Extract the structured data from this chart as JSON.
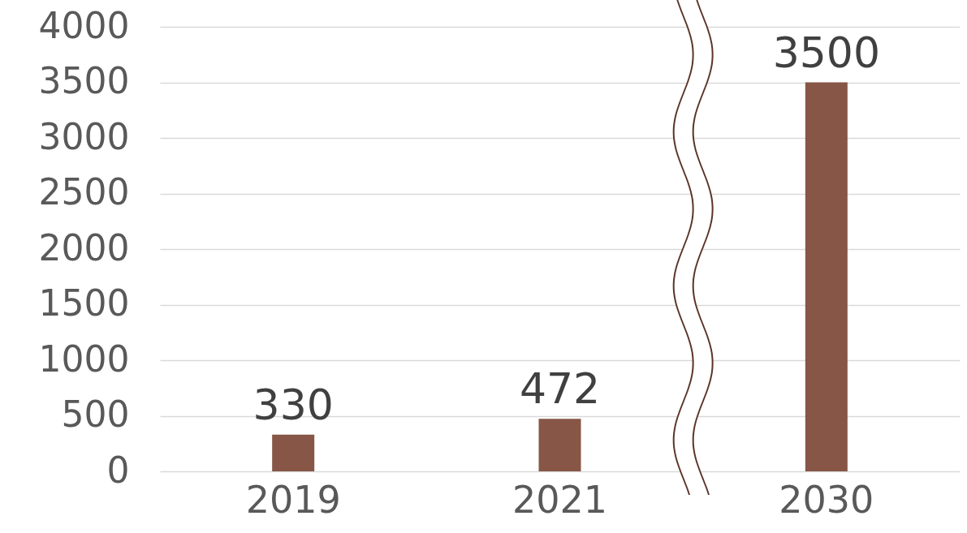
{
  "chart_data": {
    "type": "bar",
    "categories": [
      "2019",
      "2021",
      "2030"
    ],
    "values": [
      330,
      472,
      3500
    ],
    "color": "#875646",
    "ylim": [
      0,
      4000
    ],
    "yticks": [
      0,
      500,
      1000,
      1500,
      2000,
      2500,
      3000,
      3500,
      4000
    ],
    "grid": "y",
    "data_labels": true
  }
}
